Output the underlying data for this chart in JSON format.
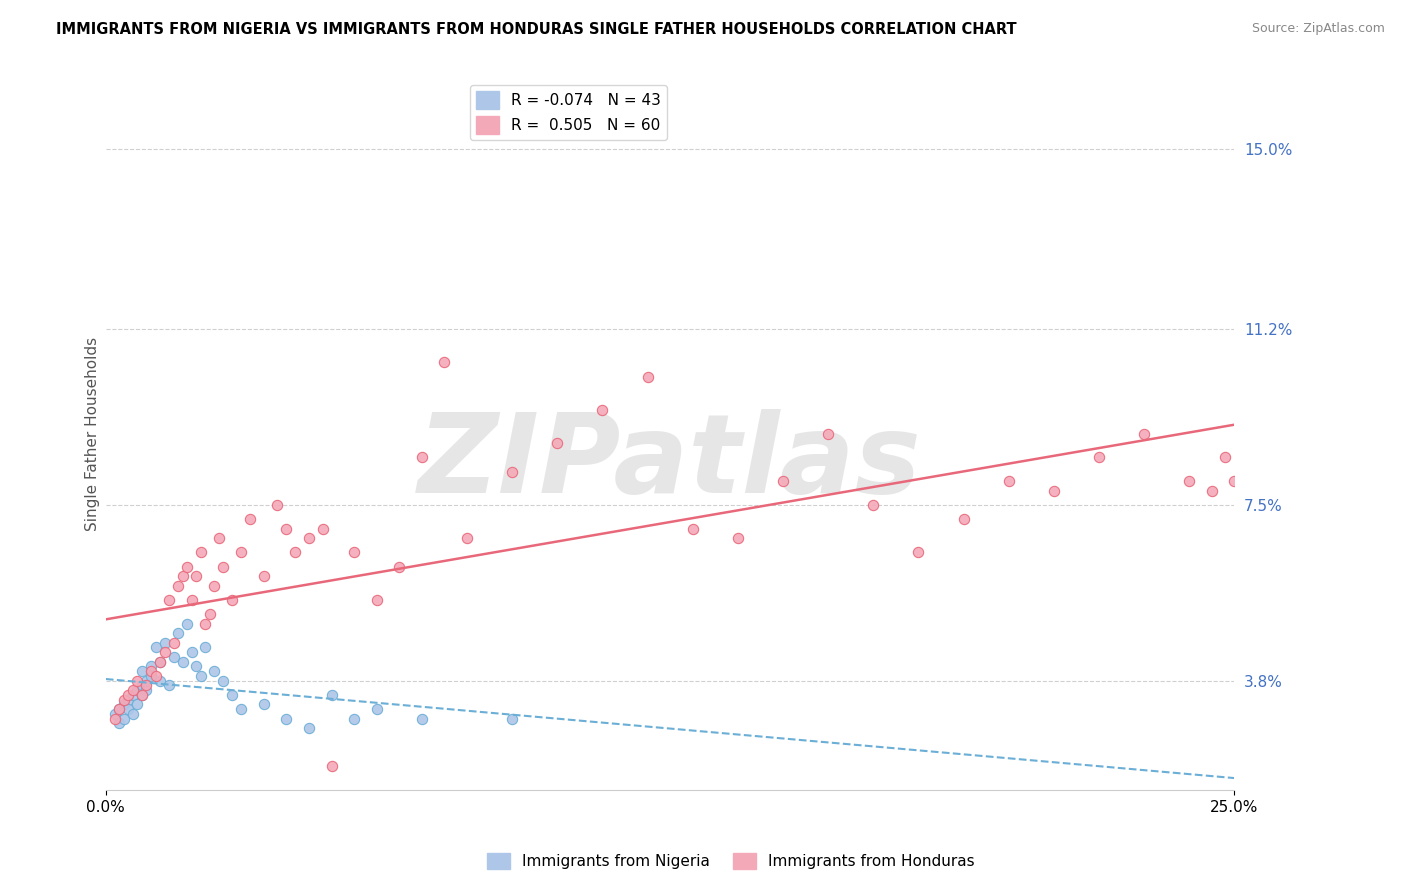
{
  "title": "IMMIGRANTS FROM NIGERIA VS IMMIGRANTS FROM HONDURAS SINGLE FATHER HOUSEHOLDS CORRELATION CHART",
  "source": "Source: ZipAtlas.com",
  "ylabel": "Single Father Households",
  "y_ticks_right": [
    3.8,
    7.5,
    11.2,
    15.0
  ],
  "y_tick_labels_right": [
    "3.8%",
    "7.5%",
    "11.2%",
    "15.0%"
  ],
  "legend_labels_bottom": [
    "Immigrants from Nigeria",
    "Immigrants from Honduras"
  ],
  "nigeria_color": "#aec6e8",
  "honduras_color": "#f4a9b8",
  "nigeria_line_color": "#6baed6",
  "honduras_line_color": "#e8687a",
  "watermark": "ZIPatlas",
  "R_nigeria": -0.074,
  "N_nigeria": 43,
  "R_honduras": 0.505,
  "N_honduras": 60,
  "nigeria_x": [
    0.2,
    0.3,
    0.3,
    0.4,
    0.4,
    0.5,
    0.5,
    0.6,
    0.6,
    0.7,
    0.7,
    0.8,
    0.8,
    0.8,
    0.9,
    0.9,
    1.0,
    1.0,
    1.1,
    1.2,
    1.2,
    1.3,
    1.4,
    1.5,
    1.6,
    1.7,
    1.8,
    1.9,
    2.0,
    2.1,
    2.2,
    2.4,
    2.6,
    2.8,
    3.0,
    3.5,
    4.0,
    4.5,
    5.0,
    5.5,
    6.0,
    7.0,
    9.0
  ],
  "nigeria_y": [
    3.1,
    2.9,
    3.2,
    3.3,
    3.0,
    3.4,
    3.2,
    3.5,
    3.1,
    3.6,
    3.3,
    3.7,
    3.5,
    4.0,
    3.6,
    3.8,
    4.1,
    3.9,
    4.5,
    3.8,
    4.2,
    4.6,
    3.7,
    4.3,
    4.8,
    4.2,
    5.0,
    4.4,
    4.1,
    3.9,
    4.5,
    4.0,
    3.8,
    3.5,
    3.2,
    3.3,
    3.0,
    2.8,
    3.5,
    3.0,
    3.2,
    3.0,
    3.0
  ],
  "honduras_x": [
    0.2,
    0.3,
    0.4,
    0.5,
    0.6,
    0.7,
    0.8,
    0.9,
    1.0,
    1.1,
    1.2,
    1.3,
    1.4,
    1.5,
    1.6,
    1.7,
    1.8,
    1.9,
    2.0,
    2.1,
    2.2,
    2.3,
    2.4,
    2.5,
    2.6,
    2.8,
    3.0,
    3.2,
    3.5,
    3.8,
    4.0,
    4.2,
    4.5,
    4.8,
    5.0,
    5.5,
    6.0,
    6.5,
    7.0,
    7.5,
    8.0,
    9.0,
    10.0,
    11.0,
    12.0,
    13.0,
    14.0,
    15.0,
    16.0,
    17.0,
    18.0,
    19.0,
    20.0,
    21.0,
    22.0,
    23.0,
    24.0,
    24.5,
    24.8,
    25.0
  ],
  "honduras_y": [
    3.0,
    3.2,
    3.4,
    3.5,
    3.6,
    3.8,
    3.5,
    3.7,
    4.0,
    3.9,
    4.2,
    4.4,
    5.5,
    4.6,
    5.8,
    6.0,
    6.2,
    5.5,
    6.0,
    6.5,
    5.0,
    5.2,
    5.8,
    6.8,
    6.2,
    5.5,
    6.5,
    7.2,
    6.0,
    7.5,
    7.0,
    6.5,
    6.8,
    7.0,
    2.0,
    6.5,
    5.5,
    6.2,
    8.5,
    10.5,
    6.8,
    8.2,
    8.8,
    9.5,
    10.2,
    7.0,
    6.8,
    8.0,
    9.0,
    7.5,
    6.5,
    7.2,
    8.0,
    7.8,
    8.5,
    9.0,
    8.0,
    7.8,
    8.5,
    8.0
  ]
}
